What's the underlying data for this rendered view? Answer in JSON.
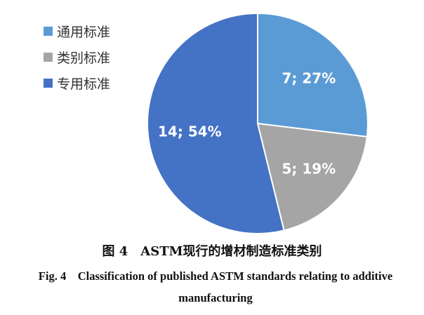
{
  "chart_data": {
    "type": "pie",
    "start": "top",
    "direction": "clockwise",
    "slices": [
      {
        "name": "通用标准",
        "value": 7,
        "percent": 27,
        "label": "7; 27%",
        "color": "#5b9bd5"
      },
      {
        "name": "类别标准",
        "value": 5,
        "percent": 19,
        "label": "5; 19%",
        "color": "#a5a5a5"
      },
      {
        "name": "专用标准",
        "value": 14,
        "percent": 54,
        "label": "14; 54%",
        "color": "#4472c4"
      }
    ],
    "legend_position": "top-left"
  },
  "caption": {
    "zh": "图 4　ASTM现行的增材制造标准类别",
    "en": "Fig. 4　Classification of published ASTM standards relating to additive manufacturing"
  }
}
